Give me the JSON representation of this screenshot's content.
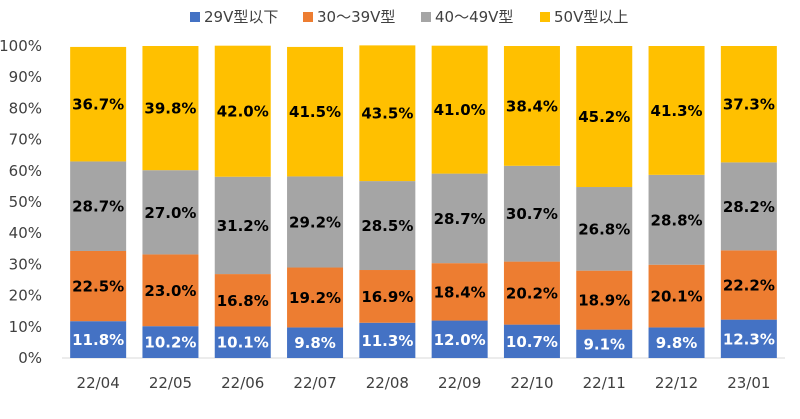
{
  "chart_data": {
    "type": "bar",
    "stacked": true,
    "categories": [
      "22/04",
      "22/05",
      "22/06",
      "22/07",
      "22/08",
      "22/09",
      "22/10",
      "22/11",
      "22/12",
      "23/01"
    ],
    "series": [
      {
        "name": "29V型以下",
        "color": "#4472C4",
        "label_color": "#ffffff",
        "values": [
          11.8,
          10.2,
          10.1,
          9.8,
          11.3,
          12.0,
          10.7,
          9.1,
          9.8,
          12.3
        ],
        "labels": [
          "11.8%",
          "10.2%",
          "10.1%",
          "9.8%",
          "11.3%",
          "12.0%",
          "10.7%",
          "9.1%",
          "9.8%",
          "12.3%"
        ]
      },
      {
        "name": "30～39V型",
        "color": "#ED7D31",
        "label_color": "#000000",
        "values": [
          22.5,
          23.0,
          16.8,
          19.2,
          16.9,
          18.4,
          20.2,
          18.9,
          20.1,
          22.2
        ],
        "labels": [
          "22.5%",
          "23.0%",
          "16.8%",
          "19.2%",
          "16.9%",
          "18.4%",
          "20.2%",
          "18.9%",
          "20.1%",
          "22.2%"
        ]
      },
      {
        "name": "40～49V型",
        "color": "#A5A5A5",
        "label_color": "#000000",
        "values": [
          28.7,
          27.0,
          31.2,
          29.2,
          28.5,
          28.7,
          30.7,
          26.8,
          28.8,
          28.2
        ],
        "labels": [
          "28.7%",
          "27.0%",
          "31.2%",
          "29.2%",
          "28.5%",
          "28.7%",
          "30.7%",
          "26.8%",
          "28.8%",
          "28.2%"
        ]
      },
      {
        "name": "50V型以上",
        "color": "#FFC000",
        "label_color": "#000000",
        "values": [
          36.7,
          39.8,
          42.0,
          41.5,
          43.5,
          41.0,
          38.4,
          45.2,
          41.3,
          37.3
        ],
        "labels": [
          "36.7%",
          "39.8%",
          "42.0%",
          "41.5%",
          "43.5%",
          "41.0%",
          "38.4%",
          "45.2%",
          "41.3%",
          "37.3%"
        ]
      }
    ],
    "yticks": [
      "0%",
      "10%",
      "20%",
      "30%",
      "40%",
      "50%",
      "60%",
      "70%",
      "80%",
      "90%",
      "100%"
    ],
    "ylim": [
      0,
      100
    ],
    "legend_position": "top",
    "grid": false
  }
}
